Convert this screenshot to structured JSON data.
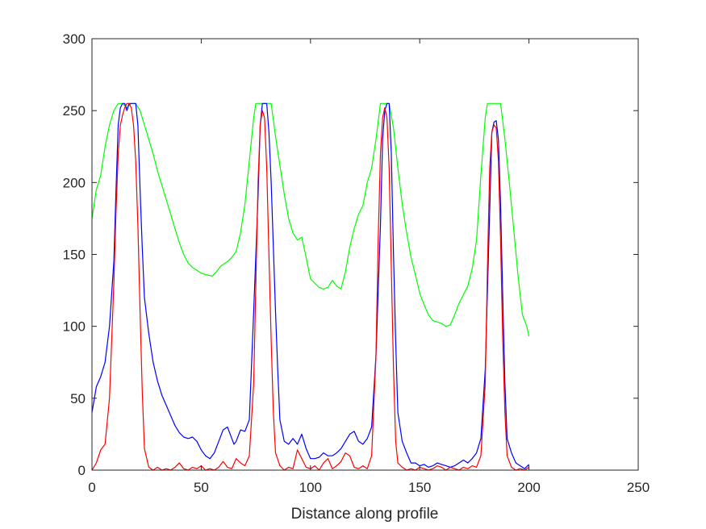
{
  "chart_data": {
    "type": "line",
    "title": "",
    "xlabel": "Distance along profile",
    "ylabel": "",
    "xlim": [
      0,
      250
    ],
    "ylim": [
      0,
      300
    ],
    "xticks": [
      0,
      50,
      100,
      150,
      200,
      250
    ],
    "yticks": [
      0,
      50,
      100,
      150,
      200,
      250,
      300
    ],
    "grid": false,
    "box": true,
    "series": [
      {
        "color": "#00ff00",
        "points": [
          [
            0,
            175
          ],
          [
            2,
            195
          ],
          [
            4,
            205
          ],
          [
            6,
            225
          ],
          [
            8,
            240
          ],
          [
            10,
            250
          ],
          [
            12,
            255
          ],
          [
            14,
            255
          ],
          [
            16,
            252
          ],
          [
            18,
            255
          ],
          [
            20,
            255
          ],
          [
            22,
            250
          ],
          [
            24,
            240
          ],
          [
            26,
            230
          ],
          [
            28,
            220
          ],
          [
            30,
            208
          ],
          [
            32,
            198
          ],
          [
            34,
            188
          ],
          [
            36,
            178
          ],
          [
            38,
            168
          ],
          [
            40,
            158
          ],
          [
            42,
            150
          ],
          [
            44,
            144
          ],
          [
            46,
            141
          ],
          [
            48,
            139
          ],
          [
            50,
            137
          ],
          [
            52,
            136
          ],
          [
            55,
            135
          ],
          [
            57,
            138
          ],
          [
            59,
            142
          ],
          [
            62,
            145
          ],
          [
            64,
            148
          ],
          [
            66,
            152
          ],
          [
            68,
            165
          ],
          [
            70,
            185
          ],
          [
            72,
            215
          ],
          [
            74,
            245
          ],
          [
            75,
            255
          ],
          [
            80,
            255
          ],
          [
            82,
            255
          ],
          [
            84,
            232
          ],
          [
            86,
            212
          ],
          [
            88,
            192
          ],
          [
            90,
            175
          ],
          [
            92,
            165
          ],
          [
            94,
            160
          ],
          [
            96,
            162
          ],
          [
            98,
            148
          ],
          [
            100,
            133
          ],
          [
            102,
            130
          ],
          [
            104,
            127
          ],
          [
            106,
            126
          ],
          [
            108,
            127
          ],
          [
            110,
            132
          ],
          [
            112,
            128
          ],
          [
            114,
            126
          ],
          [
            116,
            138
          ],
          [
            118,
            155
          ],
          [
            120,
            168
          ],
          [
            122,
            178
          ],
          [
            124,
            184
          ],
          [
            126,
            200
          ],
          [
            128,
            210
          ],
          [
            130,
            230
          ],
          [
            132,
            255
          ],
          [
            136,
            255
          ],
          [
            138,
            238
          ],
          [
            140,
            210
          ],
          [
            142,
            185
          ],
          [
            144,
            165
          ],
          [
            146,
            148
          ],
          [
            148,
            136
          ],
          [
            150,
            123
          ],
          [
            152,
            115
          ],
          [
            154,
            108
          ],
          [
            156,
            104
          ],
          [
            158,
            103
          ],
          [
            160,
            102
          ],
          [
            162,
            100
          ],
          [
            164,
            101
          ],
          [
            166,
            108
          ],
          [
            168,
            116
          ],
          [
            170,
            122
          ],
          [
            172,
            128
          ],
          [
            174,
            140
          ],
          [
            176,
            160
          ],
          [
            178,
            205
          ],
          [
            180,
            245
          ],
          [
            181,
            255
          ],
          [
            187,
            255
          ],
          [
            189,
            230
          ],
          [
            191,
            200
          ],
          [
            193,
            168
          ],
          [
            195,
            135
          ],
          [
            197,
            108
          ],
          [
            199,
            100
          ],
          [
            200,
            93
          ]
        ]
      },
      {
        "color": "#0000ff",
        "points": [
          [
            0,
            40
          ],
          [
            2,
            58
          ],
          [
            4,
            65
          ],
          [
            6,
            75
          ],
          [
            8,
            100
          ],
          [
            10,
            145
          ],
          [
            11,
            195
          ],
          [
            12,
            240
          ],
          [
            13,
            252
          ],
          [
            14,
            255
          ],
          [
            15,
            255
          ],
          [
            16,
            250
          ],
          [
            17,
            255
          ],
          [
            18,
            255
          ],
          [
            19,
            255
          ],
          [
            20,
            255
          ],
          [
            21,
            240
          ],
          [
            22,
            195
          ],
          [
            23,
            155
          ],
          [
            24,
            120
          ],
          [
            26,
            95
          ],
          [
            28,
            75
          ],
          [
            30,
            62
          ],
          [
            32,
            52
          ],
          [
            34,
            45
          ],
          [
            36,
            38
          ],
          [
            38,
            31
          ],
          [
            40,
            26
          ],
          [
            42,
            23
          ],
          [
            44,
            22
          ],
          [
            46,
            23
          ],
          [
            48,
            20
          ],
          [
            50,
            14
          ],
          [
            52,
            10
          ],
          [
            54,
            8
          ],
          [
            56,
            12
          ],
          [
            58,
            20
          ],
          [
            60,
            28
          ],
          [
            62,
            30
          ],
          [
            64,
            22
          ],
          [
            65,
            18
          ],
          [
            66,
            20
          ],
          [
            68,
            28
          ],
          [
            70,
            27
          ],
          [
            72,
            35
          ],
          [
            74,
            110
          ],
          [
            76,
            190
          ],
          [
            77,
            240
          ],
          [
            78,
            255
          ],
          [
            80,
            255
          ],
          [
            81,
            235
          ],
          [
            82,
            200
          ],
          [
            83,
            155
          ],
          [
            84,
            110
          ],
          [
            85,
            70
          ],
          [
            86,
            35
          ],
          [
            88,
            20
          ],
          [
            90,
            18
          ],
          [
            92,
            22
          ],
          [
            94,
            18
          ],
          [
            96,
            25
          ],
          [
            98,
            15
          ],
          [
            100,
            8
          ],
          [
            102,
            8
          ],
          [
            104,
            9
          ],
          [
            106,
            12
          ],
          [
            108,
            10
          ],
          [
            110,
            10
          ],
          [
            112,
            12
          ],
          [
            114,
            15
          ],
          [
            116,
            20
          ],
          [
            118,
            25
          ],
          [
            120,
            27
          ],
          [
            122,
            20
          ],
          [
            124,
            18
          ],
          [
            126,
            22
          ],
          [
            128,
            30
          ],
          [
            130,
            80
          ],
          [
            132,
            170
          ],
          [
            133,
            230
          ],
          [
            134,
            250
          ],
          [
            135,
            255
          ],
          [
            136,
            255
          ],
          [
            137,
            220
          ],
          [
            138,
            150
          ],
          [
            139,
            90
          ],
          [
            140,
            40
          ],
          [
            142,
            20
          ],
          [
            144,
            12
          ],
          [
            146,
            5
          ],
          [
            148,
            5
          ],
          [
            150,
            3
          ],
          [
            152,
            4
          ],
          [
            154,
            2
          ],
          [
            156,
            3
          ],
          [
            158,
            5
          ],
          [
            160,
            4
          ],
          [
            162,
            3
          ],
          [
            164,
            2
          ],
          [
            166,
            3
          ],
          [
            168,
            5
          ],
          [
            170,
            7
          ],
          [
            172,
            5
          ],
          [
            174,
            8
          ],
          [
            176,
            12
          ],
          [
            178,
            22
          ],
          [
            180,
            70
          ],
          [
            182,
            180
          ],
          [
            183,
            235
          ],
          [
            184,
            242
          ],
          [
            185,
            243
          ],
          [
            186,
            230
          ],
          [
            187,
            185
          ],
          [
            188,
            120
          ],
          [
            189,
            60
          ],
          [
            190,
            22
          ],
          [
            192,
            12
          ],
          [
            194,
            5
          ],
          [
            196,
            3
          ],
          [
            198,
            1
          ],
          [
            200,
            4
          ]
        ]
      },
      {
        "color": "#ff0000",
        "points": [
          [
            0,
            0
          ],
          [
            2,
            5
          ],
          [
            4,
            14
          ],
          [
            6,
            18
          ],
          [
            8,
            50
          ],
          [
            10,
            130
          ],
          [
            11,
            180
          ],
          [
            12,
            220
          ],
          [
            13,
            240
          ],
          [
            14,
            247
          ],
          [
            15,
            252
          ],
          [
            16,
            255
          ],
          [
            17,
            255
          ],
          [
            18,
            252
          ],
          [
            19,
            240
          ],
          [
            20,
            215
          ],
          [
            21,
            170
          ],
          [
            22,
            110
          ],
          [
            23,
            55
          ],
          [
            24,
            15
          ],
          [
            26,
            2
          ],
          [
            28,
            0
          ],
          [
            30,
            2
          ],
          [
            32,
            0
          ],
          [
            34,
            1
          ],
          [
            36,
            0
          ],
          [
            38,
            2
          ],
          [
            40,
            5
          ],
          [
            42,
            1
          ],
          [
            44,
            0
          ],
          [
            46,
            2
          ],
          [
            48,
            1
          ],
          [
            50,
            3
          ],
          [
            52,
            0
          ],
          [
            54,
            1
          ],
          [
            56,
            0
          ],
          [
            58,
            2
          ],
          [
            60,
            6
          ],
          [
            62,
            2
          ],
          [
            64,
            1
          ],
          [
            66,
            8
          ],
          [
            68,
            5
          ],
          [
            70,
            3
          ],
          [
            72,
            10
          ],
          [
            74,
            60
          ],
          [
            75,
            130
          ],
          [
            76,
            200
          ],
          [
            77,
            240
          ],
          [
            78,
            250
          ],
          [
            79,
            245
          ],
          [
            80,
            210
          ],
          [
            81,
            150
          ],
          [
            82,
            90
          ],
          [
            83,
            40
          ],
          [
            84,
            12
          ],
          [
            86,
            3
          ],
          [
            88,
            0
          ],
          [
            90,
            2
          ],
          [
            92,
            1
          ],
          [
            94,
            14
          ],
          [
            96,
            8
          ],
          [
            98,
            2
          ],
          [
            100,
            1
          ],
          [
            102,
            3
          ],
          [
            104,
            0
          ],
          [
            106,
            5
          ],
          [
            108,
            8
          ],
          [
            110,
            1
          ],
          [
            112,
            3
          ],
          [
            114,
            6
          ],
          [
            116,
            12
          ],
          [
            118,
            10
          ],
          [
            120,
            2
          ],
          [
            122,
            1
          ],
          [
            124,
            3
          ],
          [
            126,
            1
          ],
          [
            128,
            10
          ],
          [
            130,
            80
          ],
          [
            131,
            160
          ],
          [
            132,
            220
          ],
          [
            133,
            245
          ],
          [
            134,
            252
          ],
          [
            135,
            245
          ],
          [
            136,
            210
          ],
          [
            137,
            140
          ],
          [
            138,
            70
          ],
          [
            139,
            20
          ],
          [
            140,
            5
          ],
          [
            142,
            2
          ],
          [
            144,
            0
          ],
          [
            146,
            1
          ],
          [
            148,
            0
          ],
          [
            150,
            2
          ],
          [
            152,
            1
          ],
          [
            154,
            0
          ],
          [
            156,
            1
          ],
          [
            158,
            3
          ],
          [
            160,
            2
          ],
          [
            162,
            0
          ],
          [
            164,
            2
          ],
          [
            166,
            1
          ],
          [
            168,
            0
          ],
          [
            170,
            2
          ],
          [
            172,
            1
          ],
          [
            174,
            3
          ],
          [
            176,
            2
          ],
          [
            178,
            10
          ],
          [
            180,
            60
          ],
          [
            181,
            140
          ],
          [
            182,
            210
          ],
          [
            183,
            235
          ],
          [
            184,
            240
          ],
          [
            185,
            238
          ],
          [
            186,
            215
          ],
          [
            187,
            160
          ],
          [
            188,
            90
          ],
          [
            189,
            40
          ],
          [
            190,
            10
          ],
          [
            192,
            2
          ],
          [
            194,
            0
          ],
          [
            196,
            1
          ],
          [
            198,
            0
          ],
          [
            200,
            2
          ]
        ]
      }
    ]
  }
}
